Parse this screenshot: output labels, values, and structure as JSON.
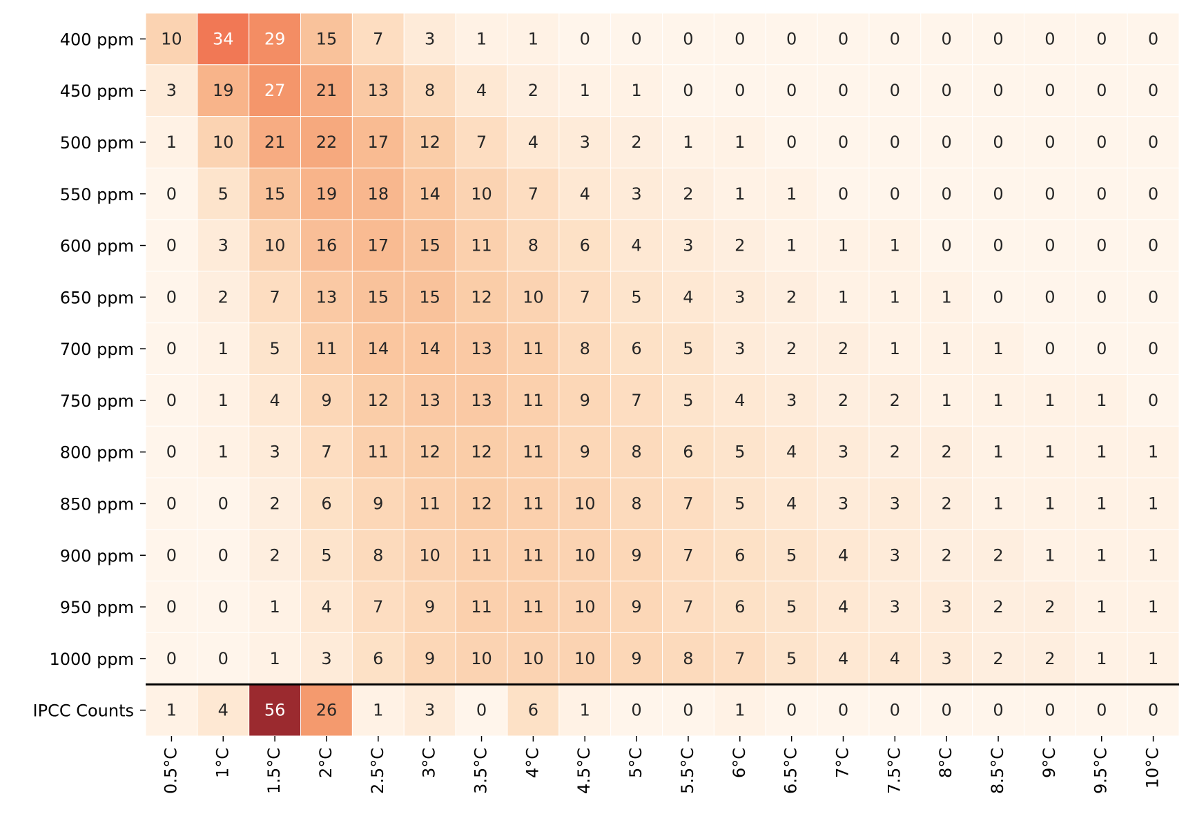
{
  "chart_data": {
    "type": "heatmap",
    "title": "",
    "xlabel": "",
    "ylabel": "",
    "x_categories": [
      "0.5°C",
      "1°C",
      "1.5°C",
      "2°C",
      "2.5°C",
      "3°C",
      "3.5°C",
      "4°C",
      "4.5°C",
      "5°C",
      "5.5°C",
      "6°C",
      "6.5°C",
      "7°C",
      "7.5°C",
      "8°C",
      "8.5°C",
      "9°C",
      "9.5°C",
      "10°C"
    ],
    "y_categories": [
      "400 ppm",
      "450 ppm",
      "500 ppm",
      "550 ppm",
      "600 ppm",
      "650 ppm",
      "700 ppm",
      "750 ppm",
      "800 ppm",
      "850 ppm",
      "900 ppm",
      "950 ppm",
      "1000 ppm",
      "IPCC Counts"
    ],
    "values": [
      [
        10,
        34,
        29,
        15,
        7,
        3,
        1,
        1,
        0,
        0,
        0,
        0,
        0,
        0,
        0,
        0,
        0,
        0,
        0,
        0
      ],
      [
        3,
        19,
        27,
        21,
        13,
        8,
        4,
        2,
        1,
        1,
        0,
        0,
        0,
        0,
        0,
        0,
        0,
        0,
        0,
        0
      ],
      [
        1,
        10,
        21,
        22,
        17,
        12,
        7,
        4,
        3,
        2,
        1,
        1,
        0,
        0,
        0,
        0,
        0,
        0,
        0,
        0
      ],
      [
        0,
        5,
        15,
        19,
        18,
        14,
        10,
        7,
        4,
        3,
        2,
        1,
        1,
        0,
        0,
        0,
        0,
        0,
        0,
        0
      ],
      [
        0,
        3,
        10,
        16,
        17,
        15,
        11,
        8,
        6,
        4,
        3,
        2,
        1,
        1,
        1,
        0,
        0,
        0,
        0,
        0
      ],
      [
        0,
        2,
        7,
        13,
        15,
        15,
        12,
        10,
        7,
        5,
        4,
        3,
        2,
        1,
        1,
        1,
        0,
        0,
        0,
        0
      ],
      [
        0,
        1,
        5,
        11,
        14,
        14,
        13,
        11,
        8,
        6,
        5,
        3,
        2,
        2,
        1,
        1,
        1,
        0,
        0,
        0
      ],
      [
        0,
        1,
        4,
        9,
        12,
        13,
        13,
        11,
        9,
        7,
        5,
        4,
        3,
        2,
        2,
        1,
        1,
        1,
        1,
        0
      ],
      [
        0,
        1,
        3,
        7,
        11,
        12,
        12,
        11,
        9,
        8,
        6,
        5,
        4,
        3,
        2,
        2,
        1,
        1,
        1,
        1
      ],
      [
        0,
        0,
        2,
        6,
        9,
        11,
        12,
        11,
        10,
        8,
        7,
        5,
        4,
        3,
        3,
        2,
        1,
        1,
        1,
        1
      ],
      [
        0,
        0,
        2,
        5,
        8,
        10,
        11,
        11,
        10,
        9,
        7,
        6,
        5,
        4,
        3,
        2,
        2,
        1,
        1,
        1
      ],
      [
        0,
        0,
        1,
        4,
        7,
        9,
        11,
        11,
        10,
        9,
        7,
        6,
        5,
        4,
        3,
        3,
        2,
        2,
        1,
        1
      ],
      [
        0,
        0,
        1,
        3,
        6,
        9,
        10,
        10,
        10,
        9,
        8,
        7,
        5,
        4,
        4,
        3,
        2,
        2,
        1,
        1
      ],
      [
        1,
        4,
        56,
        26,
        1,
        3,
        0,
        6,
        1,
        0,
        0,
        1,
        0,
        0,
        0,
        0,
        0,
        0,
        0,
        0
      ]
    ],
    "vmin": 0,
    "vmax": 56,
    "colormap": [
      "#fff5eb",
      "#fde0c5",
      "#facba6",
      "#f8b58b",
      "#f59e72",
      "#f2855d",
      "#ef6a4c",
      "#de4f44",
      "#c5363b",
      "#9b2a2f"
    ],
    "text_color_dark": "#262626",
    "text_color_light": "#ffffff",
    "separator_color": "#000000",
    "grid_line_color": "#ffffff",
    "colorbar": false,
    "grid": false,
    "legend": false
  }
}
